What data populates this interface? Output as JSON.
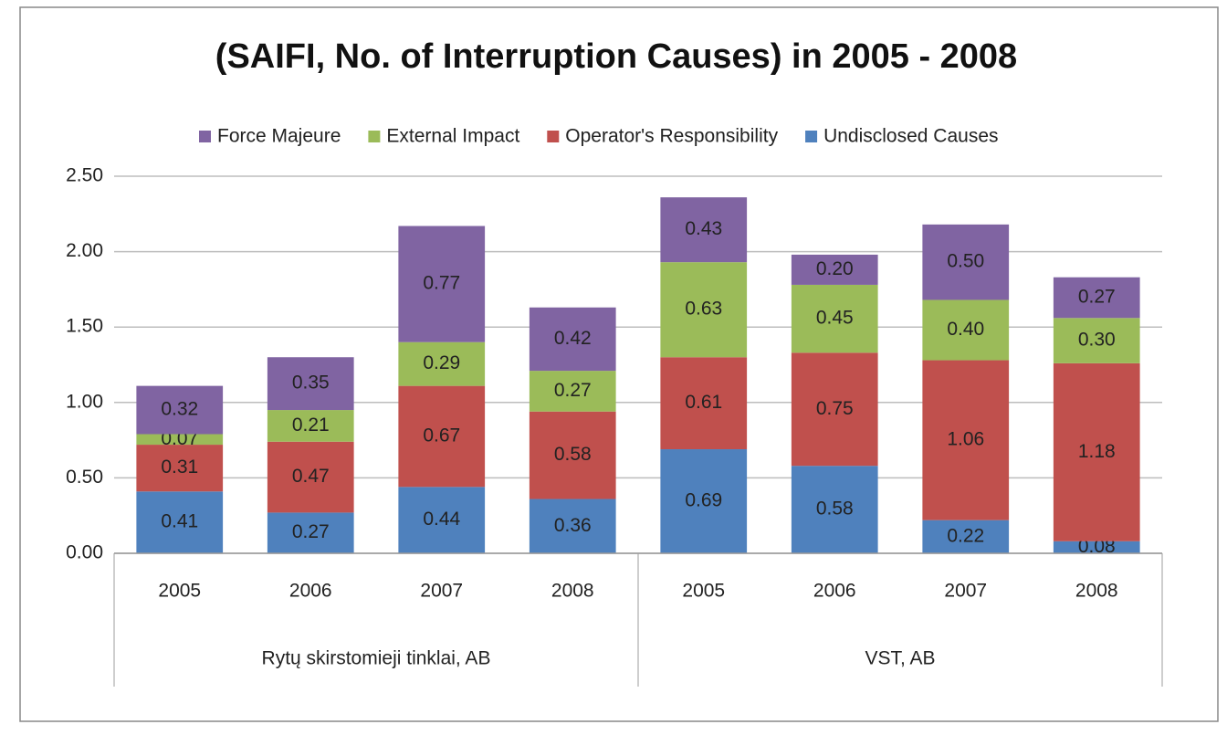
{
  "chart_data": {
    "type": "stacked_bar",
    "title": "(SAIFI, No. of Interruption Causes) in 2005 - 2008",
    "groups": [
      {
        "label": "Rytų skirstomieji tinklai, AB",
        "categories": [
          "2005",
          "2006",
          "2007",
          "2008"
        ]
      },
      {
        "label": "VST, AB",
        "categories": [
          "2005",
          "2006",
          "2007",
          "2008"
        ]
      }
    ],
    "series": [
      {
        "name": "Undisclosed Causes",
        "color": "#4f81bd",
        "values": [
          0.41,
          0.27,
          0.44,
          0.36,
          0.69,
          0.58,
          0.22,
          0.08
        ],
        "value_labels": [
          "0.41",
          "0.27",
          "0.44",
          "0.36",
          "0.69",
          "0.58",
          "0.22",
          "0.08"
        ]
      },
      {
        "name": "Operator's Responsibility",
        "color": "#c0504d",
        "values": [
          0.31,
          0.47,
          0.67,
          0.58,
          0.61,
          0.75,
          1.06,
          1.18
        ],
        "value_labels": [
          "0.31",
          "0.47",
          "0.67",
          "0.58",
          "0.61",
          "0.75",
          "1.06",
          "1.18"
        ]
      },
      {
        "name": "External Impact",
        "color": "#9bbb59",
        "values": [
          0.07,
          0.21,
          0.29,
          0.27,
          0.63,
          0.45,
          0.4,
          0.3
        ],
        "value_labels": [
          "0.07",
          "0.21",
          "0.29",
          "0.27",
          "0.63",
          "0.45",
          "0.40",
          "0.30"
        ]
      },
      {
        "name": "Force Majeure",
        "color": "#8064a2",
        "values": [
          0.32,
          0.35,
          0.77,
          0.42,
          0.43,
          0.2,
          0.5,
          0.27
        ],
        "value_labels": [
          "0.32",
          "0.35",
          "0.77",
          "0.42",
          "0.43",
          "0.20",
          "0.50",
          "0.27"
        ]
      }
    ],
    "ylim": [
      0,
      2.5
    ],
    "yticks": [
      {
        "value": 0,
        "label": "0.00"
      },
      {
        "value": 0.5,
        "label": "0.50"
      },
      {
        "value": 1,
        "label": "1.00"
      },
      {
        "value": 1.5,
        "label": "1.50"
      },
      {
        "value": 2,
        "label": "2.00"
      },
      {
        "value": 2.5,
        "label": "2.50"
      }
    ],
    "grid": true,
    "legend": "top"
  }
}
